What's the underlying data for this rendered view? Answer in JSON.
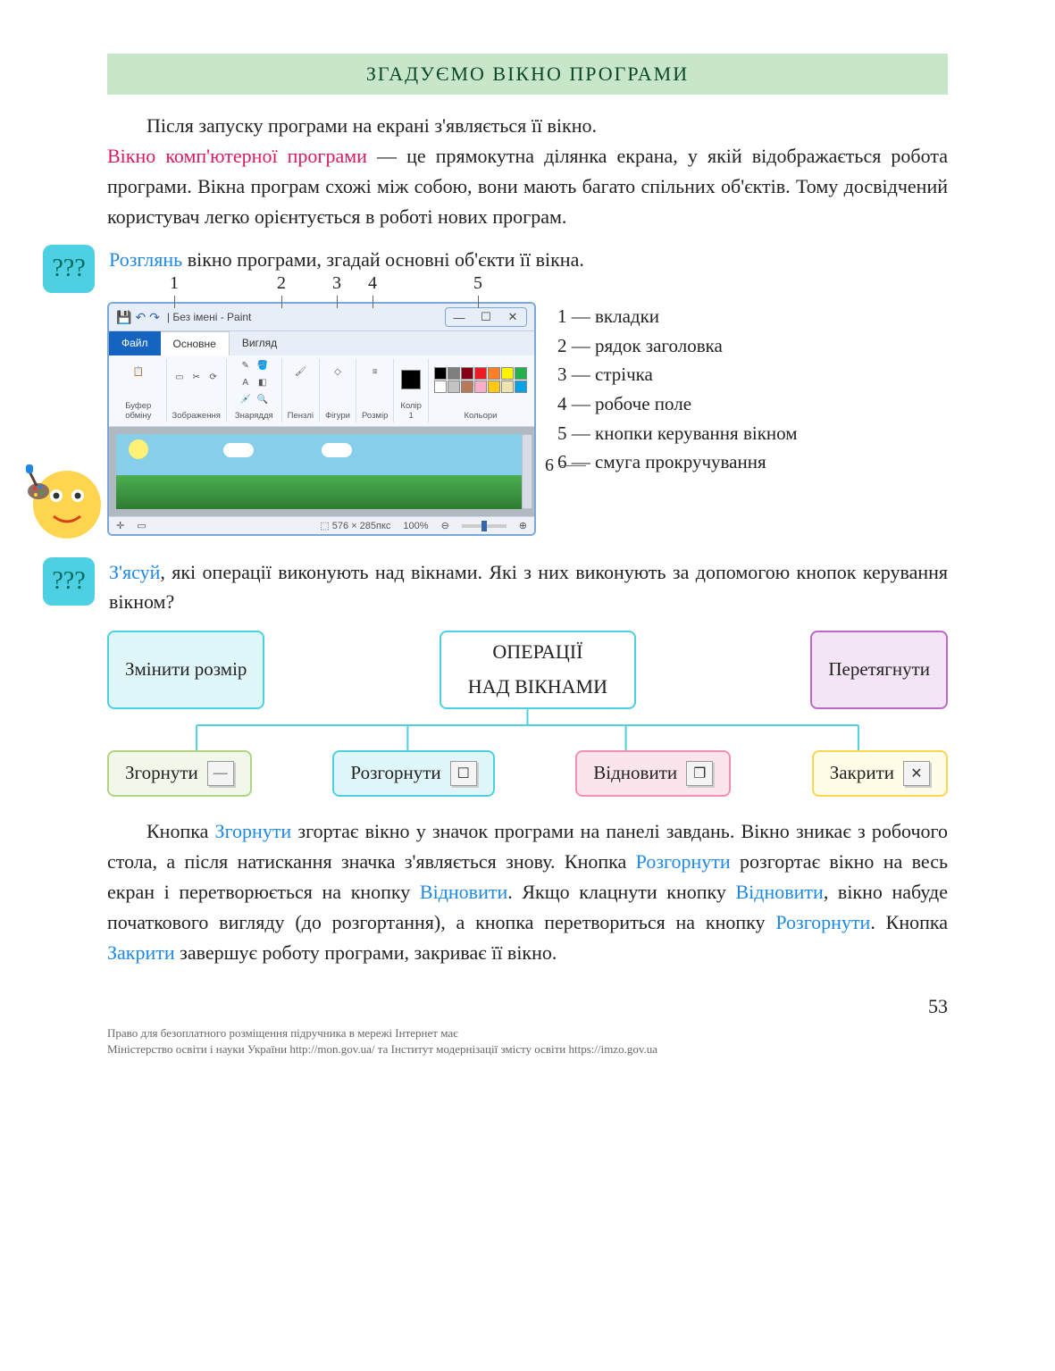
{
  "heading": "ЗГАДУЄМО  ВІКНО  ПРОГРАМИ",
  "intro_para_1": "Після запуску програми на екрані з'являється її вікно.",
  "term_highlight": "Вікно комп'ютерної програми",
  "intro_para_2a": " — це прямокутна ділянка екрана, у якій відображається робота програми. Вікна програм схожі між собою, вони мають багато спільних об'єктів. Тому до­свідчений користувач легко орієнтується в роботі нових програм.",
  "task1_verb": "Розглянь",
  "task1_rest": " вікно програми, згадай основні об'єкти її вікна.",
  "task2_verb": "З'ясуй",
  "task2_rest": ", які операції виконують над вікнами. Які з них викону­ють за допомогою кнопок керування вікном?",
  "pointers": {
    "p1": "1",
    "p2": "2",
    "p3": "3",
    "p4": "4",
    "p5": "5",
    "p6": "6"
  },
  "paint": {
    "title": "Без імені - Paint",
    "tab_file": "Файл",
    "tab_main": "Основне",
    "tab_view": "Вигляд",
    "group_clipboard": "Буфер обміну",
    "group_image": "Зображення",
    "group_tools": "Знаряддя",
    "group_brushes": "Пензлі",
    "group_shapes": "Фігури",
    "group_size": "Розмір",
    "group_color1": "Колір 1",
    "group_colors": "Кольори",
    "status_dims": "576 × 285пкс",
    "status_zoom": "100%",
    "palette_colors": [
      "#000000",
      "#7f7f7f",
      "#880015",
      "#ed1c24",
      "#ff7f27",
      "#fff200",
      "#22b14c",
      "#ffffff",
      "#c3c3c3",
      "#b97a57",
      "#ffaec9",
      "#ffc90e",
      "#efe4b0",
      "#00a2e8"
    ]
  },
  "legend": {
    "i1": "1 — вкладки",
    "i2": "2 — рядок заголовка",
    "i3": "3 — стрічка",
    "i4": "4 — робоче поле",
    "i5": "5 — кнопки керування вікном",
    "i6": "6 — смуга прокручування"
  },
  "diagram": {
    "center_l1": "ОПЕРАЦІЇ",
    "center_l2": "НАД ВІКНАМИ",
    "resize": "Змінити розмір",
    "drag": "Перетягнути",
    "minimize": "Згорнути",
    "maximize": "Розгорнути",
    "restore": "Відновити",
    "close": "Закрити",
    "colors": {
      "resize_border": "#4dd0e1",
      "resize_bg": "#e0f7fa",
      "drag_border": "#ba68c8",
      "drag_bg": "#f3e5f5",
      "center_border": "#4dd0e1",
      "center_bg": "#ffffff",
      "minimize_border": "#aed581",
      "minimize_bg": "#f1f8e9",
      "maximize_border": "#4dd0e1",
      "maximize_bg": "#e0f7fa",
      "restore_border": "#f48fb1",
      "restore_bg": "#fce4ec",
      "close_border": "#ffd54f",
      "close_bg": "#fffde7"
    },
    "icons": {
      "min": "—",
      "max": "☐",
      "restore": "❐",
      "close": "✕"
    }
  },
  "explain": {
    "t1": "Кнопка ",
    "k_min": "Згорнути",
    "t2": " згортає вікно у значок програми на пане­лі завдань. Вікно зникає з робочого стола, а після натискання значка з'являється знову. Кнопка ",
    "k_max": "Розгорнути",
    "t3": " розгортає вікно на весь екран і перетворюється на кнопку ",
    "k_rest": "Відновити",
    "t4": ". Якщо клац­нути кнопку ",
    "k_rest2": "Відновити",
    "t5": ", вікно набуде початкового вигляду (до розгортання), а кнопка перетвориться на кнопку ",
    "k_max2": "Розгорнути",
    "t6": ". Кнопка ",
    "k_close": "Закрити",
    "t7": " завершує роботу програми, закриває її вікно."
  },
  "page_number": "53",
  "footer_l1": "Право для безоплатного розміщення підручника в мережі Інтернет має",
  "footer_l2": "Міністерство освіти і науки України http://mon.gov.ua/ та Інститут модернізації змісту освіти https://imzo.gov.ua"
}
